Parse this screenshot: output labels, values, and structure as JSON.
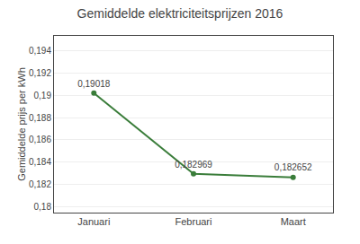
{
  "chart_data": {
    "type": "line",
    "title": "Gemiddelde elektriciteitsprijzen 2016",
    "ylabel": "Gemiddelde prijs per kWh",
    "categories": [
      "Januari",
      "Februari",
      "Maart"
    ],
    "values": [
      0.19018,
      0.182969,
      0.182652
    ],
    "value_labels": [
      "0,19018",
      "0,182969",
      "0,182652"
    ],
    "data_labels": true,
    "ylim": [
      0.1795,
      0.1953
    ],
    "yticks": [
      {
        "value": 0.18,
        "label": "0,18"
      },
      {
        "value": 0.182,
        "label": "0,182"
      },
      {
        "value": 0.184,
        "label": "0,184"
      },
      {
        "value": 0.186,
        "label": "0,186"
      },
      {
        "value": 0.188,
        "label": "0,188"
      },
      {
        "value": 0.19,
        "label": "0,19"
      },
      {
        "value": 0.192,
        "label": "0,192"
      },
      {
        "value": 0.194,
        "label": "0,194"
      }
    ],
    "color": "#3A7D3A",
    "marker": "circle",
    "grid": true
  }
}
